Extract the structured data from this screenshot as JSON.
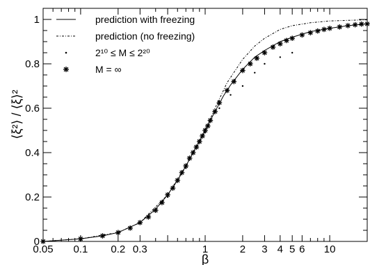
{
  "chart_data": {
    "type": "scatter",
    "title": "",
    "xlabel": "β",
    "ylabel": "⟨ξ²⟩ / ⟨ξ⟩²",
    "x_scale": "log",
    "xlim": [
      0.05,
      20
    ],
    "ylim": [
      0,
      1.05
    ],
    "grid": false,
    "legend_position": "top-left",
    "x_ticks": [
      0.05,
      0.1,
      0.2,
      0.3,
      0.5,
      1,
      2,
      3,
      4,
      5,
      6,
      10
    ],
    "x_tick_labels": [
      "0.05",
      "0.1",
      "0.2",
      "0.3",
      "",
      "1",
      "2",
      "3",
      "4",
      "5",
      "6",
      "10"
    ],
    "y_ticks": [
      0,
      0.2,
      0.4,
      0.6,
      0.8,
      1
    ],
    "y_tick_labels": [
      "0",
      "0.2",
      "0.4",
      "0.6",
      "0.8",
      "1"
    ],
    "series": [
      {
        "name": "prediction with freezing",
        "style": "solid-line",
        "x": [
          0.05,
          0.1,
          0.15,
          0.2,
          0.3,
          0.4,
          0.5,
          0.6,
          0.7,
          0.8,
          0.9,
          1.0,
          1.1,
          1.2,
          1.4,
          1.6,
          2.0,
          2.5,
          3.0,
          4.0,
          5.0,
          7.0,
          10.0,
          14.0,
          20.0
        ],
        "y": [
          0.0,
          0.012,
          0.025,
          0.04,
          0.085,
          0.145,
          0.21,
          0.275,
          0.34,
          0.4,
          0.45,
          0.5,
          0.545,
          0.585,
          0.655,
          0.705,
          0.775,
          0.83,
          0.86,
          0.9,
          0.92,
          0.945,
          0.96,
          0.972,
          0.98
        ]
      },
      {
        "name": "prediction (no freezing)",
        "style": "dash-dot-line",
        "x": [
          0.05,
          0.1,
          0.2,
          0.3,
          0.5,
          0.7,
          1.0,
          1.2,
          1.5,
          2.0,
          2.5,
          3.0,
          4.0,
          5.0,
          7.0,
          10.0,
          14.0,
          20.0
        ],
        "y": [
          0.0,
          0.012,
          0.04,
          0.085,
          0.21,
          0.34,
          0.5,
          0.6,
          0.715,
          0.82,
          0.88,
          0.915,
          0.955,
          0.972,
          0.985,
          0.993,
          0.996,
          0.998
        ]
      },
      {
        "name": "2¹⁰ ≤ M ≤ 2²⁰",
        "style": "dots",
        "x": [
          0.1,
          0.2,
          0.3,
          0.5,
          0.7,
          1.0,
          1.3,
          1.6,
          2.0,
          2.5,
          3.0,
          4.0,
          5.0
        ],
        "y": [
          0.005,
          0.035,
          0.08,
          0.2,
          0.33,
          0.49,
          0.6,
          0.66,
          0.7,
          0.76,
          0.8,
          0.83,
          0.85
        ]
      },
      {
        "name": "M = ∞",
        "style": "asterisk-markers",
        "x": [
          0.05,
          0.1,
          0.15,
          0.2,
          0.25,
          0.3,
          0.35,
          0.4,
          0.45,
          0.5,
          0.55,
          0.6,
          0.65,
          0.7,
          0.75,
          0.8,
          0.85,
          0.9,
          0.95,
          1.0,
          1.05,
          1.1,
          1.2,
          1.3,
          1.5,
          1.7,
          2.0,
          2.3,
          2.6,
          3.0,
          3.5,
          4.0,
          4.5,
          5.0,
          6.0,
          7.0,
          8.0,
          9.0,
          10.0,
          12.0,
          14.0,
          16.0,
          18.0,
          20.0
        ],
        "y": [
          0.0,
          0.012,
          0.025,
          0.04,
          0.06,
          0.085,
          0.11,
          0.14,
          0.175,
          0.21,
          0.24,
          0.275,
          0.31,
          0.34,
          0.375,
          0.4,
          0.425,
          0.45,
          0.475,
          0.5,
          0.52,
          0.545,
          0.585,
          0.625,
          0.68,
          0.72,
          0.77,
          0.8,
          0.825,
          0.85,
          0.875,
          0.89,
          0.905,
          0.915,
          0.93,
          0.94,
          0.948,
          0.955,
          0.96,
          0.966,
          0.972,
          0.976,
          0.979,
          0.98
        ]
      }
    ]
  }
}
